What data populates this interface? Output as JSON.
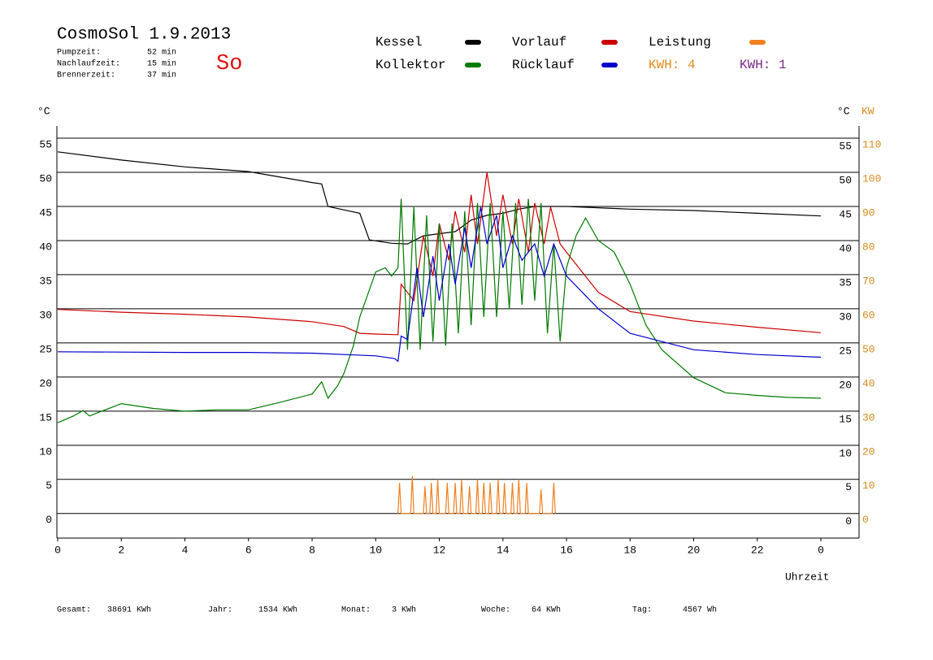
{
  "chart_data": {
    "type": "line",
    "title": "CosmoSol 1.9.2013",
    "stats": [
      [
        "Pumpzeit:",
        "52 min"
      ],
      [
        "Nachlaufzeit:",
        "15 min"
      ],
      [
        "Brennerzeit:",
        "37 min"
      ]
    ],
    "day": "So",
    "kwh_labels": [
      {
        "text": "KWH: 4",
        "color": "#e08a1e"
      },
      {
        "text": "KWH: 1",
        "color": "#7a2a8a"
      }
    ],
    "ylabel": "°C",
    "y2label": "KW",
    "xlabel": "Uhrzeit",
    "xlim": [
      0,
      25.2
    ],
    "xticks": [
      0,
      2,
      4,
      6,
      8,
      10,
      12,
      14,
      16,
      18,
      20,
      22,
      {
        "value": 24,
        "label": "0"
      }
    ],
    "ylim": [
      -3.6,
      55
    ],
    "yticks": [
      0,
      5,
      10,
      15,
      20,
      25,
      30,
      35,
      40,
      45,
      50,
      55
    ],
    "y2lim": [
      -7.2,
      110
    ],
    "y2ticks": [
      0,
      10,
      20,
      30,
      40,
      50,
      60,
      70,
      80,
      90,
      100,
      110
    ],
    "grid": true,
    "series": [
      {
        "name": "Kessel",
        "color": "#000000",
        "x": [
          0,
          2,
          4,
          6,
          8,
          8.3,
          8.5,
          9,
          9.5,
          9.8,
          10.5,
          11,
          11.5,
          12,
          12.5,
          13,
          13.5,
          14,
          14.5,
          15,
          16,
          18,
          20,
          22,
          24
        ],
        "values": [
          53,
          51.8,
          50.8,
          50.1,
          48.5,
          48.3,
          45,
          44.5,
          44,
          40.1,
          39.6,
          39.5,
          40.7,
          41,
          41.3,
          43,
          43.7,
          44,
          44.6,
          45,
          45,
          44.6,
          44.4,
          44,
          43.6
        ]
      },
      {
        "name": "Vorlauf",
        "color": "#cc0000",
        "x": [
          0,
          2,
          4,
          6,
          8,
          9,
          9.5,
          10,
          10.7,
          10.8,
          11.2,
          11.5,
          11.8,
          12,
          12.3,
          12.5,
          12.8,
          13,
          13.2,
          13.5,
          13.8,
          14,
          14.3,
          14.5,
          14.8,
          15,
          15.3,
          15.5,
          15.8,
          16,
          17,
          18,
          20,
          22,
          24
        ],
        "values": [
          29.9,
          29.5,
          29.2,
          28.8,
          28.1,
          27.4,
          26.4,
          26.3,
          26.2,
          33.6,
          31.2,
          40.7,
          34.8,
          42.5,
          37.1,
          44.3,
          38.3,
          46.7,
          39.5,
          50,
          40.7,
          46.7,
          39.5,
          46.1,
          38.3,
          45.5,
          39.5,
          44.9,
          39.5,
          38.3,
          32.4,
          29.6,
          28.2,
          27.3,
          26.5
        ]
      },
      {
        "name": "Kollektor",
        "color": "#007a00",
        "x": [
          0,
          0.5,
          0.8,
          1,
          2,
          3,
          4,
          5,
          6,
          7,
          8,
          8.3,
          8.5,
          8.8,
          9,
          9.3,
          9.5,
          10,
          10.3,
          10.5,
          10.7,
          10.8,
          11,
          11.2,
          11.4,
          11.6,
          11.8,
          12,
          12.2,
          12.4,
          12.6,
          12.8,
          13,
          13.2,
          13.4,
          13.6,
          13.8,
          14,
          14.2,
          14.4,
          14.6,
          14.8,
          15,
          15.2,
          15.4,
          15.6,
          15.8,
          16,
          16.3,
          16.6,
          17,
          17.5,
          18,
          18.5,
          19,
          20,
          21,
          22,
          23,
          24
        ],
        "values": [
          13.3,
          14.3,
          15.1,
          14.3,
          16.1,
          15.4,
          15,
          15.2,
          15.2,
          16.3,
          17.5,
          19.3,
          16.9,
          18.7,
          20.5,
          24.6,
          28.8,
          35.4,
          36,
          34.8,
          36,
          46.1,
          24,
          44.9,
          24,
          43.7,
          25.2,
          42.5,
          24.6,
          42.5,
          26.4,
          44.3,
          27.6,
          45.5,
          28.8,
          45.5,
          28.8,
          44.3,
          30,
          45.5,
          30.6,
          46.1,
          31.2,
          45.5,
          26.4,
          39.5,
          25.2,
          36,
          40.7,
          43.3,
          40,
          38.3,
          33.6,
          27.6,
          24,
          19.9,
          17.7,
          17.3,
          17,
          16.9
        ]
      },
      {
        "name": "Rücklauf",
        "color": "#0000cc",
        "x": [
          0,
          4,
          6,
          8,
          10,
          10.6,
          10.7,
          10.8,
          11,
          11.3,
          11.5,
          11.8,
          12,
          12.3,
          12.5,
          12.8,
          13,
          13.3,
          13.5,
          13.8,
          14,
          14.3,
          14.6,
          15,
          15.3,
          15.6,
          16,
          17,
          18,
          20,
          22,
          24
        ],
        "values": [
          23.7,
          23.6,
          23.6,
          23.5,
          23.1,
          22.7,
          22.3,
          26,
          25.5,
          36,
          28.8,
          37.7,
          31.2,
          39.5,
          33.6,
          41.9,
          36,
          44.9,
          39.5,
          43.7,
          36,
          40.7,
          37.1,
          39.5,
          34.8,
          39.5,
          34.8,
          30,
          26.4,
          24,
          23.3,
          22.9
        ]
      },
      {
        "name": "Leistung",
        "color": "#f08020",
        "axis": "y2",
        "x": [
          10.7,
          10.75,
          10.8,
          11.1,
          11.15,
          11.2,
          11.5,
          11.55,
          11.6,
          11.7,
          11.75,
          11.8,
          11.9,
          11.95,
          12.0,
          12.2,
          12.25,
          12.3,
          12.45,
          12.5,
          12.55,
          12.65,
          12.7,
          12.75,
          12.9,
          12.95,
          13.0,
          13.15,
          13.2,
          13.25,
          13.35,
          13.4,
          13.45,
          13.55,
          13.6,
          13.65,
          13.8,
          13.85,
          13.9,
          14.0,
          14.05,
          14.1,
          14.25,
          14.3,
          14.35,
          14.45,
          14.5,
          14.55,
          14.7,
          14.75,
          14.8,
          15.15,
          15.2,
          15.25,
          15.55,
          15.6,
          15.65
        ],
        "values": [
          0,
          9,
          0,
          0,
          11,
          0,
          0,
          8,
          0,
          0,
          9,
          0,
          0,
          10,
          0,
          0,
          9,
          0,
          0,
          9,
          0,
          0,
          10,
          0,
          0,
          8,
          0,
          0,
          10,
          0,
          0,
          9,
          0,
          0,
          9,
          0,
          0,
          10,
          0,
          0,
          9,
          0,
          0,
          9,
          0,
          0,
          10,
          0,
          0,
          9,
          0,
          0,
          7,
          0,
          0,
          9,
          0
        ]
      }
    ],
    "totals": [
      [
        "Gesamt:",
        "38691 KWh"
      ],
      [
        "Jahr:",
        "1534 KWh"
      ],
      [
        "Monat:",
        "3 KWh"
      ],
      [
        "Woche:",
        "64 KWh"
      ],
      [
        "Tag:",
        "4567 Wh"
      ]
    ]
  }
}
